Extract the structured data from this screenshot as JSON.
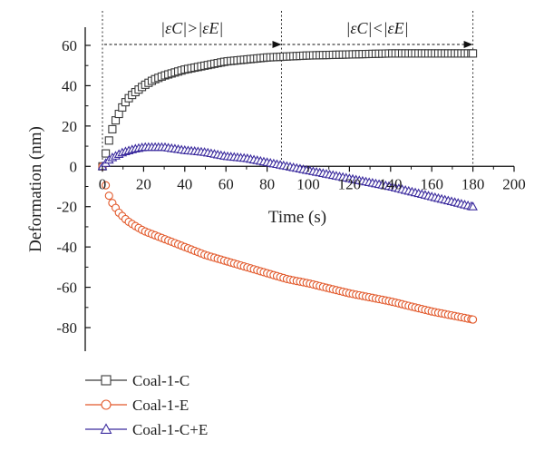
{
  "chart_data": {
    "type": "scatter",
    "title": "",
    "xlabel": "Time (s)",
    "ylabel": "Deformation (nm)",
    "xlim": [
      0,
      200
    ],
    "ylim": [
      -90,
      70
    ],
    "x_ticks": [
      0,
      20,
      40,
      60,
      80,
      100,
      120,
      140,
      160,
      180,
      200
    ],
    "y_ticks": [
      60,
      40,
      20,
      0,
      -20,
      -40,
      -60,
      -80
    ],
    "grid": false,
    "legend_position": "bottom-left, below plot",
    "series": [
      {
        "name": "Coal-1-C",
        "marker": "square",
        "color": "#3a3a3a",
        "x": [
          0,
          1,
          2,
          3,
          4,
          6,
          8,
          10,
          12,
          15,
          20,
          25,
          30,
          40,
          50,
          60,
          70,
          80,
          90,
          100,
          120,
          140,
          160,
          180
        ],
        "y": [
          0,
          4,
          8,
          12,
          16,
          22,
          26,
          30,
          33,
          36,
          40,
          43,
          45,
          48,
          50,
          52,
          53,
          54,
          54.5,
          55,
          55.5,
          56,
          56,
          56
        ]
      },
      {
        "name": "Coal-1-E",
        "marker": "circle",
        "color": "#e2582a",
        "x": [
          0,
          1,
          2,
          3,
          4,
          6,
          8,
          10,
          12,
          15,
          20,
          25,
          30,
          40,
          50,
          60,
          70,
          80,
          90,
          100,
          120,
          140,
          160,
          180
        ],
        "y": [
          0,
          -7,
          -11,
          -14,
          -17,
          -20,
          -23,
          -25,
          -27,
          -29,
          -32,
          -34,
          -36,
          -40,
          -44,
          -47,
          -50,
          -53,
          -56,
          -58,
          -63,
          -67,
          -72,
          -76
        ]
      },
      {
        "name": "Coal-1-C+E",
        "marker": "triangle",
        "color": "#3b2b9e",
        "x": [
          0,
          2,
          4,
          6,
          8,
          10,
          15,
          20,
          25,
          30,
          40,
          50,
          60,
          70,
          80,
          90,
          100,
          110,
          120,
          140,
          160,
          180
        ],
        "y": [
          0,
          2,
          4,
          5,
          6,
          7,
          8.5,
          9.5,
          9.5,
          9.5,
          8,
          7,
          5,
          4,
          2,
          0,
          -2,
          -4,
          -6,
          -10,
          -15,
          -20
        ]
      }
    ],
    "annotations": {
      "left_region": "|εC|>|εE|",
      "right_region": "|εC|<|εE|",
      "divider_x": 87,
      "end_x": 180
    }
  }
}
